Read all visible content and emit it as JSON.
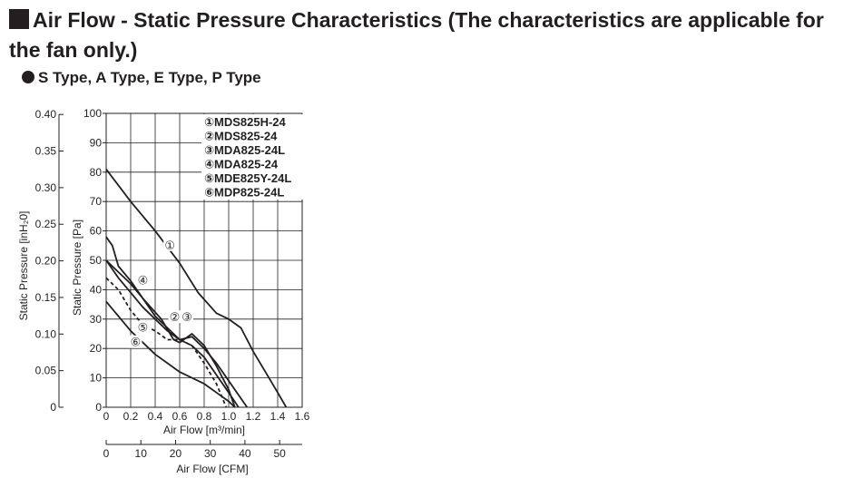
{
  "header": {
    "title": "Air Flow - Static Pressure Characteristics (The characteristics are applicable for the fan only.)",
    "subtitle": "S Type, A Type, E Type, P Type"
  },
  "chart_data": {
    "type": "line",
    "xlabel": "Air Flow [m³/min]",
    "x2label": "Air Flow [CFM]",
    "ylabel": "Static Pressure [Pa]",
    "y2label": "Static Pressure [inH₂0]",
    "xlim": [
      0,
      1.6
    ],
    "ylim": [
      0,
      100
    ],
    "x_ticks": [
      "0",
      "0.2",
      "0.4",
      "0.6",
      "0.8",
      "1.0",
      "1.2",
      "1.4",
      "1.6"
    ],
    "y_ticks": [
      "0",
      "10",
      "20",
      "30",
      "40",
      "50",
      "60",
      "70",
      "80",
      "90",
      "100"
    ],
    "cfm_ticks": [
      "0",
      "10",
      "20",
      "30",
      "40",
      "50"
    ],
    "inh2o_ticks": [
      "0",
      "0.05",
      "0.10",
      "0.15",
      "0.20",
      "0.25",
      "0.30",
      "0.35",
      "0.40"
    ],
    "grid": true,
    "legend_position": "top-right",
    "series": [
      {
        "name": "①MDS825H-24",
        "marker": "①",
        "style": "solid",
        "points": [
          [
            0,
            81
          ],
          [
            0.2,
            70
          ],
          [
            0.4,
            60
          ],
          [
            0.6,
            49
          ],
          [
            0.75,
            39
          ],
          [
            0.9,
            32
          ],
          [
            1.0,
            30
          ],
          [
            1.1,
            27
          ],
          [
            1.2,
            19
          ],
          [
            1.3,
            12
          ],
          [
            1.4,
            5
          ],
          [
            1.47,
            0
          ]
        ]
      },
      {
        "name": "②MDS825-24",
        "marker": "②",
        "style": "solid",
        "points": [
          [
            0,
            50
          ],
          [
            0.1,
            44
          ],
          [
            0.2,
            39
          ],
          [
            0.3,
            34
          ],
          [
            0.4,
            30
          ],
          [
            0.5,
            26
          ],
          [
            0.6,
            23
          ],
          [
            0.7,
            21
          ],
          [
            0.8,
            17
          ],
          [
            0.9,
            11
          ],
          [
            1.0,
            5
          ],
          [
            1.08,
            0
          ]
        ]
      },
      {
        "name": "③MDA825-24L",
        "marker": "③",
        "style": "solid",
        "points": [
          [
            0,
            58
          ],
          [
            0.05,
            55
          ],
          [
            0.1,
            48
          ],
          [
            0.2,
            43
          ],
          [
            0.3,
            37
          ],
          [
            0.4,
            31
          ],
          [
            0.5,
            27
          ],
          [
            0.6,
            23
          ],
          [
            0.7,
            24
          ],
          [
            0.8,
            20
          ],
          [
            0.9,
            15
          ],
          [
            1.0,
            9
          ],
          [
            1.1,
            3
          ],
          [
            1.15,
            0
          ]
        ]
      },
      {
        "name": "④MDA825-24",
        "marker": "④",
        "style": "solid",
        "points": [
          [
            0,
            50
          ],
          [
            0.1,
            46
          ],
          [
            0.2,
            42
          ],
          [
            0.3,
            37
          ],
          [
            0.45,
            30
          ],
          [
            0.55,
            23
          ],
          [
            0.6,
            22
          ],
          [
            0.7,
            25
          ],
          [
            0.8,
            21
          ],
          [
            0.9,
            14
          ],
          [
            1.0,
            6
          ],
          [
            1.05,
            0
          ]
        ]
      },
      {
        "name": "⑤MDE825Y-24L",
        "marker": "⑤",
        "style": "dashed",
        "points": [
          [
            0,
            44
          ],
          [
            0.1,
            40
          ],
          [
            0.2,
            33
          ],
          [
            0.3,
            28
          ],
          [
            0.4,
            26
          ],
          [
            0.5,
            23
          ],
          [
            0.6,
            23
          ],
          [
            0.7,
            21
          ],
          [
            0.8,
            15
          ],
          [
            0.9,
            8
          ],
          [
            0.98,
            0
          ]
        ]
      },
      {
        "name": "⑥MDP825-24L",
        "marker": "⑥",
        "style": "solid",
        "points": [
          [
            0,
            36
          ],
          [
            0.1,
            31
          ],
          [
            0.2,
            26
          ],
          [
            0.3,
            22
          ],
          [
            0.4,
            18
          ],
          [
            0.5,
            15
          ],
          [
            0.6,
            12
          ],
          [
            0.7,
            10
          ],
          [
            0.8,
            8
          ],
          [
            0.9,
            5
          ],
          [
            1.0,
            2
          ],
          [
            1.05,
            0
          ]
        ]
      }
    ],
    "annotations": [
      {
        "text": "①",
        "x": 0.52,
        "y": 55
      },
      {
        "text": "④",
        "x": 0.3,
        "y": 43
      },
      {
        "text": "②",
        "x": 0.56,
        "y": 30.5
      },
      {
        "text": "③",
        "x": 0.66,
        "y": 30.5
      },
      {
        "text": "⑤",
        "x": 0.3,
        "y": 27
      },
      {
        "text": "⑥",
        "x": 0.24,
        "y": 22
      }
    ]
  }
}
